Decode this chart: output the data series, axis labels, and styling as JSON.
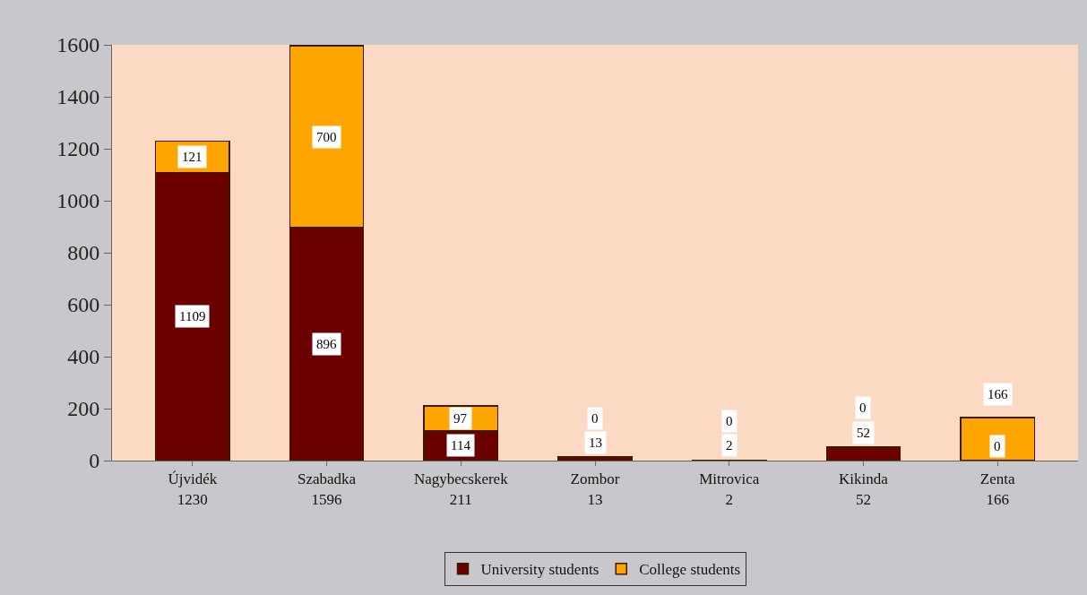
{
  "chart_data": {
    "type": "bar",
    "stacked": true,
    "categories": [
      "Újvidék\n1230",
      "Szabadka\n1596",
      "Nagybecskerek\n211",
      "Zombor\n13",
      "Mitrovica\n2",
      "Kikinda\n52",
      "Zenta\n166"
    ],
    "series": [
      {
        "name": "University students",
        "color": "#6b0000",
        "values": [
          1109,
          896,
          114,
          13,
          2,
          52,
          0
        ]
      },
      {
        "name": "College students",
        "color": "#ffa500",
        "values": [
          121,
          700,
          97,
          0,
          0,
          0,
          166
        ]
      }
    ],
    "ylim": [
      0,
      1600
    ],
    "yticks": [
      0,
      200,
      400,
      600,
      800,
      1000,
      1200,
      1400,
      1600
    ],
    "grid": false,
    "legend": "bottom",
    "data_labels": true
  }
}
